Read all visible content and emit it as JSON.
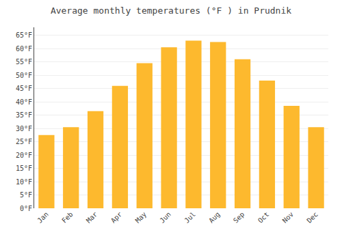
{
  "chart_data": {
    "type": "bar",
    "title": "Average monthly temperatures (°F ) in Prudnik",
    "categories": [
      "Jan",
      "Feb",
      "Mar",
      "Apr",
      "May",
      "Jun",
      "Jul",
      "Aug",
      "Sep",
      "Oct",
      "Nov",
      "Dec"
    ],
    "values": [
      27.5,
      30.5,
      36.5,
      46.0,
      54.5,
      60.5,
      63.0,
      62.5,
      56.0,
      48.0,
      38.5,
      30.5
    ],
    "color": "#FDB92E",
    "ylim": [
      0,
      68
    ],
    "yticks": [
      {
        "value": 0,
        "label": "0°F"
      },
      {
        "value": 5,
        "label": "5°F"
      },
      {
        "value": 10,
        "label": "10°F"
      },
      {
        "value": 15,
        "label": "15°F"
      },
      {
        "value": 20,
        "label": "20°F"
      },
      {
        "value": 25,
        "label": "25°F"
      },
      {
        "value": 30,
        "label": "30°F"
      },
      {
        "value": 35,
        "label": "35°F"
      },
      {
        "value": 40,
        "label": "40°F"
      },
      {
        "value": 45,
        "label": "45°F"
      },
      {
        "value": 50,
        "label": "50°F"
      },
      {
        "value": 55,
        "label": "55°F"
      },
      {
        "value": 60,
        "label": "60°F"
      },
      {
        "value": 65,
        "label": "65°F"
      }
    ],
    "grid": true
  }
}
